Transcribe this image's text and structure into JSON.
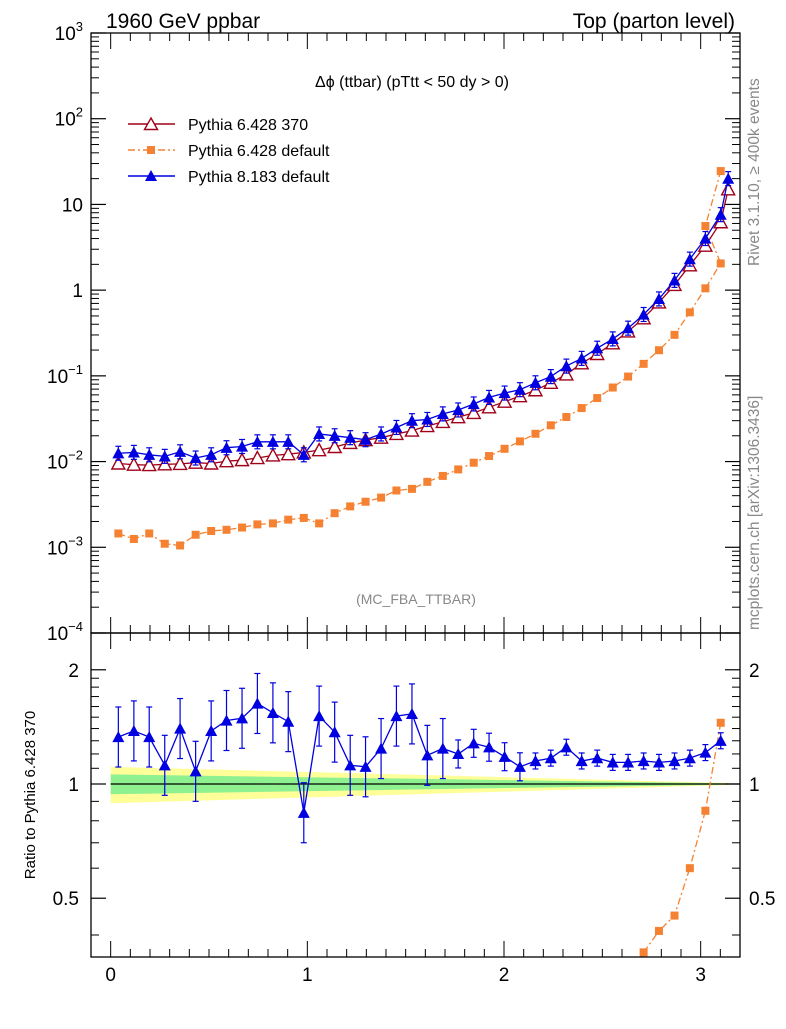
{
  "header": {
    "left": "1960 GeV ppbar",
    "right": "Top (parton level)"
  },
  "side_labels": {
    "rivet": "Rivet 3.1.10, ≥ 400k events",
    "mcplots": "mcplots.cern.ch [arXiv:1306.3436]"
  },
  "colors": {
    "p6_370": "#a00018",
    "p6_default": "#f58232",
    "p8_default": "#0000e0",
    "band_inner": "#8ef08e",
    "band_outer": "#ffff99"
  },
  "chart_data": [
    {
      "type": "line",
      "title": "Δϕ (ttbar) (pTtt < 50 dy > 0)",
      "annotation": "(MC_FBA_TTBAR)",
      "y_scale": "log",
      "xlim": [
        -0.1,
        3.2
      ],
      "ylim": [
        0.0001,
        1000
      ],
      "y_tick_labels": [
        "10^-4",
        "10^-3",
        "10^-2",
        "10^-1",
        "1",
        "10",
        "10^2",
        "10^3"
      ],
      "x": [
        0.039,
        0.118,
        0.196,
        0.275,
        0.353,
        0.432,
        0.511,
        0.589,
        0.668,
        0.746,
        0.825,
        0.903,
        0.982,
        1.06,
        1.139,
        1.218,
        1.296,
        1.375,
        1.453,
        1.532,
        1.61,
        1.689,
        1.767,
        1.846,
        1.924,
        2.003,
        2.081,
        2.16,
        2.238,
        2.317,
        2.395,
        2.474,
        2.553,
        2.631,
        2.71,
        2.788,
        2.867,
        2.945,
        3.024,
        3.102
      ],
      "legend_position": "top-left",
      "series": [
        {
          "name": "Pythia 6.428 370",
          "marker": "open-triangle",
          "line": "solid",
          "values": [
            0.0095,
            0.0092,
            0.0091,
            0.0093,
            0.0094,
            0.0097,
            0.0095,
            0.0101,
            0.0104,
            0.011,
            0.0118,
            0.0122,
            0.0128,
            0.0136,
            0.0148,
            0.0165,
            0.0178,
            0.019,
            0.021,
            0.023,
            0.026,
            0.029,
            0.033,
            0.037,
            0.043,
            0.05,
            0.058,
            0.068,
            0.083,
            0.104,
            0.14,
            0.18,
            0.24,
            0.33,
            0.47,
            0.72,
            1.15,
            1.95,
            3.3,
            6.2
          ],
          "last_value": 15.0
        },
        {
          "name": "Pythia 6.428 default",
          "marker": "filled-square",
          "line": "dash-dot",
          "values": [
            0.00145,
            0.00125,
            0.00145,
            0.0011,
            0.00105,
            0.0014,
            0.00155,
            0.0016,
            0.0017,
            0.00185,
            0.0019,
            0.0021,
            0.0022,
            0.0019,
            0.0025,
            0.003,
            0.0034,
            0.0038,
            0.0046,
            0.0048,
            0.0058,
            0.0068,
            0.0081,
            0.0097,
            0.0116,
            0.0141,
            0.0172,
            0.0211,
            0.0265,
            0.0331,
            0.0421,
            0.0551,
            0.0731,
            0.0981,
            0.1381,
            0.1991,
            0.301,
            0.551,
            1.05,
            2.05
          ],
          "extra_points": [
            [
              3.024,
              5.6
            ],
            [
              3.102,
              24.5
            ]
          ]
        },
        {
          "name": "Pythia 8.183 default",
          "marker": "filled-triangle",
          "line": "solid",
          "values": [
            0.0125,
            0.0128,
            0.012,
            0.0115,
            0.013,
            0.011,
            0.012,
            0.0145,
            0.015,
            0.017,
            0.017,
            0.017,
            0.012,
            0.021,
            0.02,
            0.019,
            0.018,
            0.021,
            0.025,
            0.03,
            0.031,
            0.036,
            0.04,
            0.047,
            0.056,
            0.063,
            0.069,
            0.083,
            0.098,
            0.13,
            0.16,
            0.21,
            0.27,
            0.36,
            0.52,
            0.79,
            1.3,
            2.3,
            4.0,
            7.6
          ],
          "last_value": 20.0
        }
      ]
    },
    {
      "type": "line",
      "ylabel": "Ratio to Pythia 6.428 370",
      "y_scale": "log",
      "xlim": [
        -0.1,
        3.2
      ],
      "ylim": [
        0.35,
        2.5
      ],
      "x_tick_labels": [
        "0",
        "1",
        "2",
        "3"
      ],
      "y_tick_labels": [
        "0.5",
        "1",
        "2"
      ],
      "reference_line": 1,
      "bands": {
        "inner_halfwidth_start": 0.06,
        "outer_halfwidth_start": 0.11
      },
      "series": [
        {
          "name": "Pythia 8.183 default",
          "marker": "filled-triangle",
          "x": [
            0.039,
            0.118,
            0.196,
            0.275,
            0.353,
            0.432,
            0.511,
            0.589,
            0.668,
            0.746,
            0.825,
            0.903,
            0.982,
            1.06,
            1.139,
            1.218,
            1.296,
            1.375,
            1.453,
            1.532,
            1.61,
            1.689,
            1.767,
            1.846,
            1.924,
            2.003,
            2.081,
            2.16,
            2.238,
            2.317,
            2.395,
            2.474,
            2.553,
            2.631,
            2.71,
            2.788,
            2.867,
            2.945,
            3.024,
            3.102
          ],
          "values": [
            1.33,
            1.38,
            1.33,
            1.12,
            1.4,
            1.08,
            1.38,
            1.47,
            1.49,
            1.63,
            1.54,
            1.46,
            0.84,
            1.51,
            1.37,
            1.12,
            1.11,
            1.24,
            1.51,
            1.53,
            1.19,
            1.24,
            1.2,
            1.28,
            1.25,
            1.18,
            1.11,
            1.15,
            1.17,
            1.25,
            1.15,
            1.17,
            1.14,
            1.14,
            1.15,
            1.14,
            1.15,
            1.17,
            1.21,
            1.3
          ]
        },
        {
          "name": "Pythia 6.428 default",
          "marker": "filled-square",
          "x": [
            2.71,
            2.788,
            2.867,
            2.945,
            3.024,
            3.102
          ],
          "values": [
            0.36,
            0.41,
            0.45,
            0.6,
            0.85,
            1.45
          ]
        }
      ]
    }
  ]
}
